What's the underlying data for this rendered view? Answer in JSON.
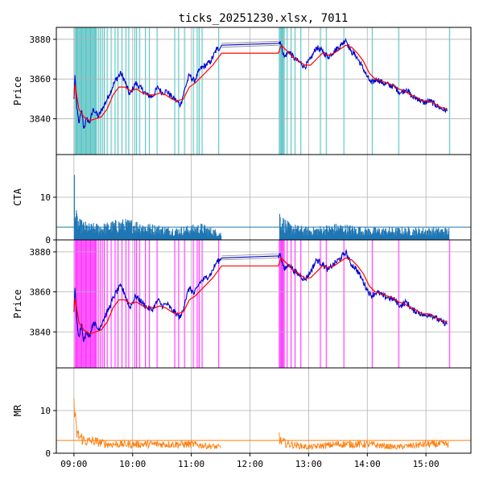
{
  "chart_data": {
    "type": "line",
    "title": "ticks_20251230.xlsx, 7011",
    "x_ticks": [
      "09:00",
      "10:00",
      "11:00",
      "12:00",
      "13:00",
      "14:00",
      "15:00"
    ],
    "x_range": [
      "08:42",
      "15:46"
    ],
    "grid": true,
    "panels": [
      {
        "ylabel": "Price",
        "ylim": [
          3822,
          3886
        ],
        "yticks": [
          3840,
          3860,
          3880
        ],
        "series": [
          {
            "color": "#0000cc",
            "points": [
              [
                "09:00",
                3850
              ],
              [
                "09:01",
                3862
              ],
              [
                "09:03",
                3845
              ],
              [
                "09:05",
                3838
              ],
              [
                "09:08",
                3844
              ],
              [
                "09:10",
                3835
              ],
              [
                "09:13",
                3840
              ],
              [
                "09:16",
                3838
              ],
              [
                "09:20",
                3845
              ],
              [
                "09:25",
                3841
              ],
              [
                "09:30",
                3846
              ],
              [
                "09:36",
                3852
              ],
              [
                "09:42",
                3859
              ],
              [
                "09:48",
                3863
              ],
              [
                "09:52",
                3859
              ],
              [
                "09:57",
                3852
              ],
              [
                "10:03",
                3858
              ],
              [
                "10:09",
                3855
              ],
              [
                "10:15",
                3852
              ],
              [
                "10:20",
                3851
              ],
              [
                "10:26",
                3856
              ],
              [
                "10:30",
                3853
              ],
              [
                "10:35",
                3854
              ],
              [
                "10:40",
                3851
              ],
              [
                "10:45",
                3849
              ],
              [
                "10:49",
                3847
              ],
              [
                "10:54",
                3856
              ],
              [
                "10:58",
                3862
              ],
              [
                "11:03",
                3859
              ],
              [
                "11:09",
                3865
              ],
              [
                "11:15",
                3867
              ],
              [
                "11:20",
                3869
              ],
              [
                "11:26",
                3875
              ],
              [
                "11:30",
                3876
              ],
              [
                "11:31",
                3877
              ],
              [
                "12:29",
                3878
              ],
              [
                "12:31",
                3879
              ],
              [
                "12:35",
                3871
              ],
              [
                "12:40",
                3874
              ],
              [
                "12:46",
                3870
              ],
              [
                "12:52",
                3868
              ],
              [
                "12:56",
                3866
              ],
              [
                "13:02",
                3870
              ],
              [
                "13:08",
                3876
              ],
              [
                "13:14",
                3874
              ],
              [
                "13:20",
                3871
              ],
              [
                "13:26",
                3874
              ],
              [
                "13:33",
                3877
              ],
              [
                "13:38",
                3880
              ],
              [
                "13:43",
                3874
              ],
              [
                "13:48",
                3872
              ],
              [
                "13:54",
                3867
              ],
              [
                "14:00",
                3861
              ],
              [
                "14:04",
                3858
              ],
              [
                "14:10",
                3860
              ],
              [
                "14:16",
                3858
              ],
              [
                "14:22",
                3857
              ],
              [
                "14:28",
                3856
              ],
              [
                "14:34",
                3853
              ],
              [
                "14:40",
                3855
              ],
              [
                "14:46",
                3851
              ],
              [
                "14:52",
                3850
              ],
              [
                "14:58",
                3848
              ],
              [
                "15:04",
                3849
              ],
              [
                "15:10",
                3847
              ],
              [
                "15:16",
                3845
              ],
              [
                "15:22",
                3844
              ]
            ]
          },
          {
            "color": "#ff0000",
            "points": [
              [
                "09:00",
                3850
              ],
              [
                "09:01",
                3857
              ],
              [
                "09:05",
                3845
              ],
              [
                "09:10",
                3841
              ],
              [
                "09:16",
                3839
              ],
              [
                "09:22",
                3840
              ],
              [
                "09:28",
                3841
              ],
              [
                "09:34",
                3845
              ],
              [
                "09:40",
                3852
              ],
              [
                "09:46",
                3856
              ],
              [
                "09:52",
                3856
              ],
              [
                "09:58",
                3854
              ],
              [
                "10:04",
                3855
              ],
              [
                "10:10",
                3853
              ],
              [
                "10:16",
                3852
              ],
              [
                "10:22",
                3852
              ],
              [
                "10:28",
                3853
              ],
              [
                "10:34",
                3852
              ],
              [
                "10:40",
                3850
              ],
              [
                "10:46",
                3849
              ],
              [
                "10:52",
                3850
              ],
              [
                "10:58",
                3856
              ],
              [
                "11:04",
                3858
              ],
              [
                "11:10",
                3861
              ],
              [
                "11:16",
                3864
              ],
              [
                "11:22",
                3867
              ],
              [
                "11:28",
                3871
              ],
              [
                "11:31",
                3873
              ],
              [
                "12:29",
                3873
              ],
              [
                "12:32",
                3877
              ],
              [
                "12:38",
                3874
              ],
              [
                "12:44",
                3871
              ],
              [
                "12:50",
                3869
              ],
              [
                "12:56",
                3867
              ],
              [
                "13:02",
                3867
              ],
              [
                "13:08",
                3870
              ],
              [
                "13:14",
                3873
              ],
              [
                "13:20",
                3872
              ],
              [
                "13:26",
                3873
              ],
              [
                "13:32",
                3875
              ],
              [
                "13:38",
                3877
              ],
              [
                "13:44",
                3876
              ],
              [
                "13:50",
                3873
              ],
              [
                "13:56",
                3869
              ],
              [
                "14:02",
                3863
              ],
              [
                "14:08",
                3860
              ],
              [
                "14:14",
                3859
              ],
              [
                "14:20",
                3858
              ],
              [
                "14:26",
                3857
              ],
              [
                "14:32",
                3855
              ],
              [
                "14:38",
                3854
              ],
              [
                "14:44",
                3852
              ],
              [
                "14:50",
                3851
              ],
              [
                "14:56",
                3849
              ],
              [
                "15:02",
                3849
              ],
              [
                "15:08",
                3848
              ],
              [
                "15:14",
                3846
              ],
              [
                "15:20",
                3845
              ],
              [
                "15:22",
                3845
              ]
            ]
          },
          {
            "color": "#888888",
            "points": [
              [
                "11:31",
                3878
              ],
              [
                "12:29",
                3879
              ]
            ]
          },
          {
            "color": "#888888",
            "points": [
              [
                "11:31",
                3876
              ],
              [
                "12:29",
                3877
              ]
            ]
          }
        ],
        "vlines_color": "#33b5b5",
        "vlines": [
          "09:01",
          "09:02",
          "09:03",
          "09:04",
          "09:05",
          "09:06",
          "09:07",
          "09:08",
          "09:09",
          "09:10",
          "09:11",
          "09:12",
          "09:13",
          "09:14",
          "09:15",
          "09:16",
          "09:17",
          "09:18",
          "09:19",
          "09:20",
          "09:21",
          "09:22",
          "09:23",
          "09:25",
          "09:27",
          "09:29",
          "09:31",
          "09:34",
          "09:38",
          "09:42",
          "09:45",
          "09:49",
          "09:53",
          "09:56",
          "10:02",
          "10:04",
          "10:07",
          "10:13",
          "10:17",
          "10:25",
          "10:43",
          "10:47",
          "10:53",
          "11:02",
          "11:06",
          "11:08",
          "11:11",
          "11:28",
          "12:30",
          "12:31",
          "12:32",
          "12:33",
          "12:34",
          "12:35",
          "12:38",
          "12:42",
          "12:46",
          "12:52",
          "13:12",
          "13:18",
          "13:36",
          "14:05",
          "14:32",
          "15:24"
        ]
      },
      {
        "ylabel": "CTA",
        "ylim": [
          0,
          20
        ],
        "yticks": [
          0,
          10
        ],
        "bar_color": "#1f77b4",
        "threshold": 3,
        "sessions": [
          [
            "09:00",
            "11:30"
          ],
          [
            "12:30",
            "15:23"
          ]
        ],
        "peaks": [
          [
            "09:00",
            19
          ],
          [
            "09:01",
            10
          ],
          [
            "09:02",
            7
          ],
          [
            "09:05",
            5
          ],
          [
            "09:15",
            4
          ],
          [
            "09:30",
            4
          ],
          [
            "09:45",
            5
          ],
          [
            "10:00",
            5
          ],
          [
            "10:15",
            4
          ],
          [
            "10:45",
            3
          ],
          [
            "11:10",
            4
          ],
          [
            "11:30",
            2
          ],
          [
            "12:30",
            8
          ],
          [
            "12:32",
            6
          ],
          [
            "12:40",
            4
          ],
          [
            "13:00",
            3
          ],
          [
            "13:30",
            4
          ],
          [
            "14:00",
            3
          ],
          [
            "14:30",
            3
          ],
          [
            "15:00",
            3
          ],
          [
            "15:23",
            3
          ]
        ]
      },
      {
        "ylabel": "Price",
        "ylim": [
          3822,
          3886
        ],
        "yticks": [
          3840,
          3860,
          3880
        ],
        "use_series_of_panel": 0,
        "vlines_color": "#ff00ff",
        "vlines_from_panel": 0
      },
      {
        "ylabel": "MR",
        "ylim": [
          0,
          20
        ],
        "yticks": [
          0,
          10
        ],
        "line_color": "#ff7f0e",
        "threshold": 3,
        "sessions": [
          [
            "09:00",
            "11:30"
          ],
          [
            "12:30",
            "15:23"
          ]
        ],
        "peaks": [
          [
            "09:00",
            18
          ],
          [
            "09:01",
            12
          ],
          [
            "09:02",
            8
          ],
          [
            "09:04",
            6
          ],
          [
            "09:08",
            5
          ],
          [
            "09:12",
            4
          ],
          [
            "09:20",
            4
          ],
          [
            "09:35",
            3
          ],
          [
            "10:00",
            3
          ],
          [
            "10:30",
            3
          ],
          [
            "11:00",
            3
          ],
          [
            "11:30",
            2
          ],
          [
            "12:30",
            6
          ],
          [
            "12:31",
            4
          ],
          [
            "12:40",
            3
          ],
          [
            "13:00",
            2
          ],
          [
            "13:30",
            3
          ],
          [
            "14:00",
            3
          ],
          [
            "14:30",
            2
          ],
          [
            "15:00",
            3
          ],
          [
            "15:23",
            3
          ]
        ]
      }
    ]
  }
}
